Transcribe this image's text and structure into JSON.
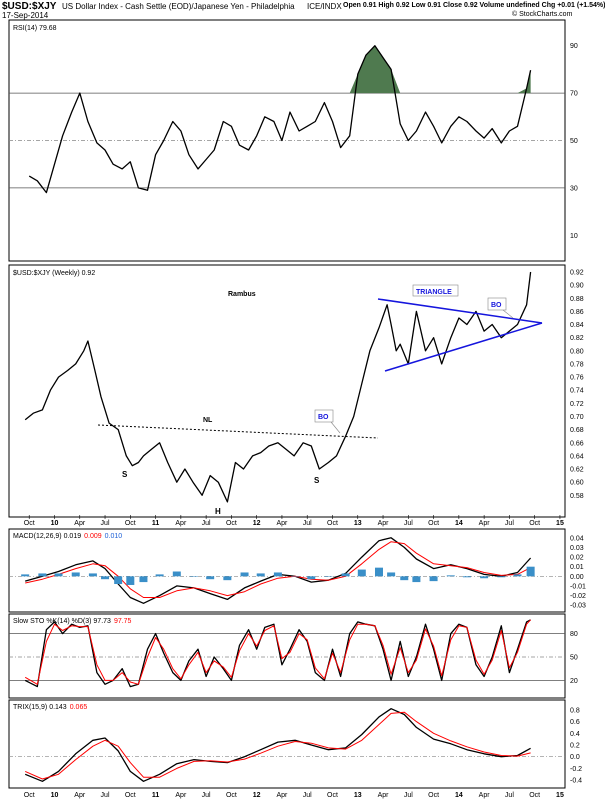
{
  "header": {
    "symbol": "$USD:$XJY",
    "description": "US Dollar Index - Cash Settle (EOD)/Japanese Yen - Philadelphia",
    "exchange": "ICE/INDX",
    "date": "17-Sep-2014",
    "quote": "Open 0.91  High 0.92  Low 0.91  Close 0.92  Volume undefined  Chg +0.01 (+1.54%)",
    "credit": "© StockCharts.com"
  },
  "colors": {
    "price": "#000000",
    "signal": "#ff0000",
    "histogram": "#3a8fc8",
    "overbought_fill": "#4f7a4f",
    "pattern_blue": "#1515dd",
    "grid": "#888888",
    "value_red": "#ff0000",
    "value_blue": "#1c5fd6"
  },
  "time_axis": {
    "labels": [
      "Oct",
      "10",
      "Apr",
      "Jul",
      "Oct",
      "11",
      "Apr",
      "Jul",
      "Oct",
      "12",
      "Apr",
      "Jul",
      "Oct",
      "13",
      "Apr",
      "Jul",
      "Oct",
      "14",
      "Apr",
      "Jul",
      "Oct",
      "15"
    ]
  },
  "chart_data": [
    {
      "type": "line",
      "panel": "rsi",
      "legend": "RSI(14) 79.68",
      "ylim": [
        0,
        100
      ],
      "yticks": [
        10,
        30,
        50,
        70,
        90
      ],
      "reference_lines": [
        30,
        50,
        70
      ],
      "series": [
        {
          "name": "RSI(14)",
          "x": [
            2009.75,
            2009.83,
            2009.92,
            2010.0,
            2010.08,
            2010.17,
            2010.25,
            2010.33,
            2010.42,
            2010.5,
            2010.58,
            2010.67,
            2010.75,
            2010.83,
            2010.92,
            2011.0,
            2011.08,
            2011.17,
            2011.25,
            2011.33,
            2011.42,
            2011.5,
            2011.58,
            2011.67,
            2011.75,
            2011.83,
            2011.92,
            2012.0,
            2012.08,
            2012.17,
            2012.25,
            2012.33,
            2012.42,
            2012.5,
            2012.58,
            2012.67,
            2012.75,
            2012.83,
            2012.92,
            2013.0,
            2013.08,
            2013.17,
            2013.25,
            2013.33,
            2013.42,
            2013.5,
            2013.58,
            2013.67,
            2013.75,
            2013.83,
            2013.92,
            2014.0,
            2014.08,
            2014.17,
            2014.25,
            2014.33,
            2014.42,
            2014.5,
            2014.58,
            2014.67,
            2014.71
          ],
          "values": [
            35,
            33,
            28,
            40,
            52,
            62,
            70,
            58,
            49,
            46,
            40,
            38,
            41,
            30,
            29,
            44,
            50,
            58,
            54,
            44,
            38,
            42,
            46,
            58,
            56,
            48,
            46,
            52,
            60,
            58,
            50,
            62,
            54,
            56,
            58,
            66,
            58,
            47,
            52,
            78,
            86,
            90,
            85,
            80,
            57,
            50,
            54,
            62,
            56,
            49,
            56,
            60,
            58,
            54,
            51,
            55,
            49,
            54,
            56,
            72,
            79.68
          ]
        }
      ]
    },
    {
      "type": "line",
      "panel": "price",
      "title": "Rambus",
      "legend": "$USD:$XJY (Weekly) 0.92",
      "ylim": [
        0.55,
        0.92
      ],
      "yticks": [
        0.58,
        0.6,
        0.62,
        0.64,
        0.66,
        0.68,
        0.7,
        0.72,
        0.74,
        0.76,
        0.78,
        0.8,
        0.82,
        0.84,
        0.86,
        0.88,
        0.9,
        0.92
      ],
      "annotations": [
        "S",
        "H",
        "S",
        "NL",
        "BO",
        "TRIANGLE",
        "BO"
      ],
      "series": [
        {
          "name": "$USD:$XJY",
          "x": [
            2009.71,
            2009.79,
            2009.88,
            2009.96,
            2010.04,
            2010.13,
            2010.21,
            2010.29,
            2010.33,
            2010.4,
            2010.46,
            2010.54,
            2010.63,
            2010.71,
            2010.77,
            2010.83,
            2010.88,
            2010.96,
            2011.04,
            2011.12,
            2011.21,
            2011.29,
            2011.37,
            2011.46,
            2011.54,
            2011.62,
            2011.71,
            2011.79,
            2011.87,
            2011.96,
            2012.04,
            2012.12,
            2012.21,
            2012.29,
            2012.37,
            2012.46,
            2012.54,
            2012.62,
            2012.71,
            2012.79,
            2012.88,
            2012.96,
            2013.04,
            2013.12,
            2013.21,
            2013.29,
            2013.33,
            2013.38,
            2013.42,
            2013.5,
            2013.58,
            2013.67,
            2013.75,
            2013.83,
            2013.92,
            2014.0,
            2014.08,
            2014.17,
            2014.25,
            2014.33,
            2014.42,
            2014.5,
            2014.58,
            2014.67,
            2014.71
          ],
          "values": [
            0.695,
            0.705,
            0.71,
            0.74,
            0.76,
            0.77,
            0.78,
            0.8,
            0.815,
            0.77,
            0.73,
            0.69,
            0.68,
            0.64,
            0.625,
            0.63,
            0.64,
            0.65,
            0.66,
            0.63,
            0.6,
            0.62,
            0.6,
            0.58,
            0.61,
            0.6,
            0.57,
            0.63,
            0.62,
            0.64,
            0.645,
            0.655,
            0.66,
            0.65,
            0.64,
            0.66,
            0.655,
            0.62,
            0.63,
            0.64,
            0.67,
            0.7,
            0.75,
            0.8,
            0.835,
            0.87,
            0.84,
            0.8,
            0.81,
            0.78,
            0.86,
            0.8,
            0.82,
            0.78,
            0.82,
            0.85,
            0.84,
            0.86,
            0.83,
            0.84,
            0.82,
            0.83,
            0.84,
            0.87,
            0.92
          ]
        }
      ]
    },
    {
      "type": "line",
      "panel": "macd",
      "legend_name": "MACD(12,26,9)",
      "legend_values": [
        "0.019",
        "0.009",
        "0.010"
      ],
      "ylim": [
        -0.035,
        0.045
      ],
      "yticks": [
        -0.03,
        -0.02,
        -0.01,
        0.0,
        0.01,
        0.02,
        0.03,
        0.04
      ],
      "series": [
        {
          "name": "MACD",
          "x": [
            2009.71,
            2009.88,
            2010.04,
            2010.21,
            2010.38,
            2010.5,
            2010.63,
            2010.75,
            2010.88,
            2011.04,
            2011.21,
            2011.38,
            2011.54,
            2011.71,
            2011.88,
            2012.04,
            2012.21,
            2012.38,
            2012.54,
            2012.71,
            2012.88,
            2013.04,
            2013.21,
            2013.33,
            2013.46,
            2013.58,
            2013.75,
            2013.92,
            2014.08,
            2014.25,
            2014.42,
            2014.58,
            2014.71
          ],
          "values": [
            -0.005,
            0.0,
            0.005,
            0.012,
            0.016,
            0.008,
            -0.008,
            -0.022,
            -0.028,
            -0.02,
            -0.01,
            -0.012,
            -0.018,
            -0.024,
            -0.012,
            -0.005,
            0.002,
            0.0,
            -0.006,
            -0.004,
            0.003,
            0.02,
            0.037,
            0.04,
            0.03,
            0.018,
            0.008,
            0.012,
            0.008,
            0.002,
            0.0,
            0.004,
            0.019
          ]
        },
        {
          "name": "Signal",
          "x": [
            2009.71,
            2009.88,
            2010.04,
            2010.21,
            2010.38,
            2010.5,
            2010.63,
            2010.75,
            2010.88,
            2011.04,
            2011.21,
            2011.38,
            2011.54,
            2011.71,
            2011.88,
            2012.04,
            2012.21,
            2012.38,
            2012.54,
            2012.71,
            2012.88,
            2013.04,
            2013.21,
            2013.33,
            2013.46,
            2013.58,
            2013.75,
            2013.92,
            2014.08,
            2014.25,
            2014.42,
            2014.58,
            2014.71
          ],
          "values": [
            -0.007,
            -0.003,
            0.002,
            0.008,
            0.013,
            0.011,
            0.0,
            -0.013,
            -0.022,
            -0.022,
            -0.015,
            -0.012,
            -0.015,
            -0.02,
            -0.016,
            -0.008,
            -0.002,
            0.0,
            -0.003,
            -0.004,
            0.0,
            0.013,
            0.028,
            0.036,
            0.034,
            0.024,
            0.013,
            0.011,
            0.009,
            0.004,
            0.001,
            0.002,
            0.009
          ]
        },
        {
          "name": "Histogram",
          "x": [
            2009.71,
            2009.88,
            2010.04,
            2010.21,
            2010.38,
            2010.5,
            2010.63,
            2010.75,
            2010.88,
            2011.04,
            2011.21,
            2011.38,
            2011.54,
            2011.71,
            2011.88,
            2012.04,
            2012.21,
            2012.38,
            2012.54,
            2012.71,
            2012.88,
            2013.04,
            2013.21,
            2013.33,
            2013.46,
            2013.58,
            2013.75,
            2013.92,
            2014.08,
            2014.25,
            2014.42,
            2014.58,
            2014.71
          ],
          "values": [
            0.002,
            0.003,
            0.003,
            0.004,
            0.003,
            -0.003,
            -0.008,
            -0.009,
            -0.006,
            0.002,
            0.005,
            0.0,
            -0.003,
            -0.004,
            0.004,
            0.003,
            0.004,
            0.0,
            -0.003,
            0.0,
            0.003,
            0.007,
            0.009,
            0.004,
            -0.004,
            -0.006,
            -0.005,
            0.001,
            -0.001,
            -0.002,
            -0.001,
            0.002,
            0.01
          ]
        }
      ]
    },
    {
      "type": "line",
      "panel": "stochastic",
      "legend_name": "Slow STO %K(14) %D(3)",
      "legend_values": [
        "97.73",
        "97.75"
      ],
      "ylim": [
        0,
        100
      ],
      "yticks": [
        20,
        50,
        80
      ],
      "series": [
        {
          "name": "%K",
          "x": [
            2009.71,
            2009.83,
            2009.92,
            2010.0,
            2010.08,
            2010.17,
            2010.25,
            2010.33,
            2010.42,
            2010.5,
            2010.58,
            2010.67,
            2010.75,
            2010.83,
            2010.92,
            2011.0,
            2011.08,
            2011.17,
            2011.25,
            2011.33,
            2011.42,
            2011.5,
            2011.58,
            2011.67,
            2011.75,
            2011.83,
            2011.92,
            2012.0,
            2012.08,
            2012.17,
            2012.25,
            2012.33,
            2012.42,
            2012.5,
            2012.58,
            2012.67,
            2012.75,
            2012.83,
            2012.92,
            2013.0,
            2013.08,
            2013.17,
            2013.25,
            2013.33,
            2013.42,
            2013.5,
            2013.58,
            2013.67,
            2013.75,
            2013.83,
            2013.92,
            2014.0,
            2014.08,
            2014.17,
            2014.25,
            2014.33,
            2014.42,
            2014.5,
            2014.58,
            2014.67,
            2014.71
          ],
          "values": [
            20,
            12,
            85,
            95,
            80,
            92,
            88,
            90,
            30,
            15,
            20,
            35,
            12,
            15,
            60,
            80,
            55,
            30,
            20,
            45,
            60,
            25,
            50,
            35,
            20,
            65,
            85,
            60,
            88,
            92,
            40,
            60,
            85,
            70,
            30,
            20,
            60,
            25,
            80,
            95,
            92,
            90,
            60,
            20,
            70,
            25,
            50,
            92,
            60,
            20,
            80,
            92,
            88,
            40,
            25,
            50,
            90,
            30,
            60,
            95,
            97.73
          ]
        },
        {
          "name": "%D",
          "x": [
            2009.71,
            2009.83,
            2009.92,
            2010.0,
            2010.08,
            2010.17,
            2010.25,
            2010.33,
            2010.42,
            2010.5,
            2010.58,
            2010.67,
            2010.75,
            2010.83,
            2010.92,
            2011.0,
            2011.08,
            2011.17,
            2011.25,
            2011.33,
            2011.42,
            2011.5,
            2011.58,
            2011.67,
            2011.75,
            2011.83,
            2011.92,
            2012.0,
            2012.08,
            2012.17,
            2012.25,
            2012.33,
            2012.42,
            2012.5,
            2012.58,
            2012.67,
            2012.75,
            2012.83,
            2012.92,
            2013.0,
            2013.08,
            2013.17,
            2013.25,
            2013.33,
            2013.42,
            2013.5,
            2013.58,
            2013.67,
            2013.75,
            2013.83,
            2013.92,
            2014.0,
            2014.08,
            2014.17,
            2014.25,
            2014.33,
            2014.42,
            2014.5,
            2014.58,
            2014.67,
            2014.71
          ],
          "values": [
            24,
            15,
            70,
            92,
            84,
            90,
            89,
            89,
            40,
            20,
            20,
            30,
            18,
            15,
            50,
            75,
            60,
            35,
            22,
            40,
            56,
            30,
            45,
            37,
            24,
            58,
            80,
            64,
            84,
            90,
            48,
            56,
            80,
            72,
            36,
            22,
            55,
            30,
            72,
            92,
            92,
            90,
            65,
            28,
            62,
            30,
            46,
            86,
            64,
            26,
            72,
            90,
            88,
            46,
            28,
            46,
            84,
            36,
            56,
            92,
            97.75
          ]
        }
      ]
    },
    {
      "type": "line",
      "panel": "trix",
      "legend_name": "TRIX(15,9)",
      "legend_values": [
        "0.143",
        "0.065"
      ],
      "ylim": [
        -0.5,
        0.9
      ],
      "yticks": [
        -0.4,
        -0.2,
        0.0,
        0.2,
        0.4,
        0.6,
        0.8
      ],
      "series": [
        {
          "name": "TRIX",
          "x": [
            2009.71,
            2009.88,
            2010.04,
            2010.21,
            2010.38,
            2010.5,
            2010.63,
            2010.75,
            2010.88,
            2011.04,
            2011.21,
            2011.38,
            2011.54,
            2011.71,
            2011.88,
            2012.04,
            2012.21,
            2012.38,
            2012.54,
            2012.71,
            2012.88,
            2013.04,
            2013.21,
            2013.33,
            2013.46,
            2013.58,
            2013.75,
            2013.92,
            2014.08,
            2014.25,
            2014.42,
            2014.58,
            2014.71
          ],
          "values": [
            -0.3,
            -0.42,
            -0.25,
            0.05,
            0.28,
            0.32,
            0.1,
            -0.25,
            -0.42,
            -0.3,
            -0.12,
            -0.05,
            -0.08,
            -0.1,
            0.0,
            0.12,
            0.25,
            0.28,
            0.2,
            0.12,
            0.15,
            0.38,
            0.68,
            0.82,
            0.72,
            0.5,
            0.3,
            0.22,
            0.12,
            0.05,
            0.0,
            0.02,
            0.143
          ]
        },
        {
          "name": "Signal",
          "x": [
            2009.71,
            2009.88,
            2010.04,
            2010.21,
            2010.38,
            2010.5,
            2010.63,
            2010.75,
            2010.88,
            2011.04,
            2011.21,
            2011.38,
            2011.54,
            2011.71,
            2011.88,
            2012.04,
            2012.21,
            2012.38,
            2012.54,
            2012.71,
            2012.88,
            2013.04,
            2013.21,
            2013.33,
            2013.46,
            2013.58,
            2013.75,
            2013.92,
            2014.08,
            2014.25,
            2014.42,
            2014.58,
            2014.71
          ],
          "values": [
            -0.25,
            -0.38,
            -0.3,
            -0.05,
            0.18,
            0.28,
            0.18,
            -0.1,
            -0.35,
            -0.35,
            -0.2,
            -0.08,
            -0.07,
            -0.09,
            -0.04,
            0.06,
            0.18,
            0.26,
            0.23,
            0.15,
            0.13,
            0.28,
            0.55,
            0.74,
            0.76,
            0.6,
            0.4,
            0.27,
            0.17,
            0.08,
            0.02,
            0.01,
            0.065
          ]
        }
      ]
    }
  ]
}
